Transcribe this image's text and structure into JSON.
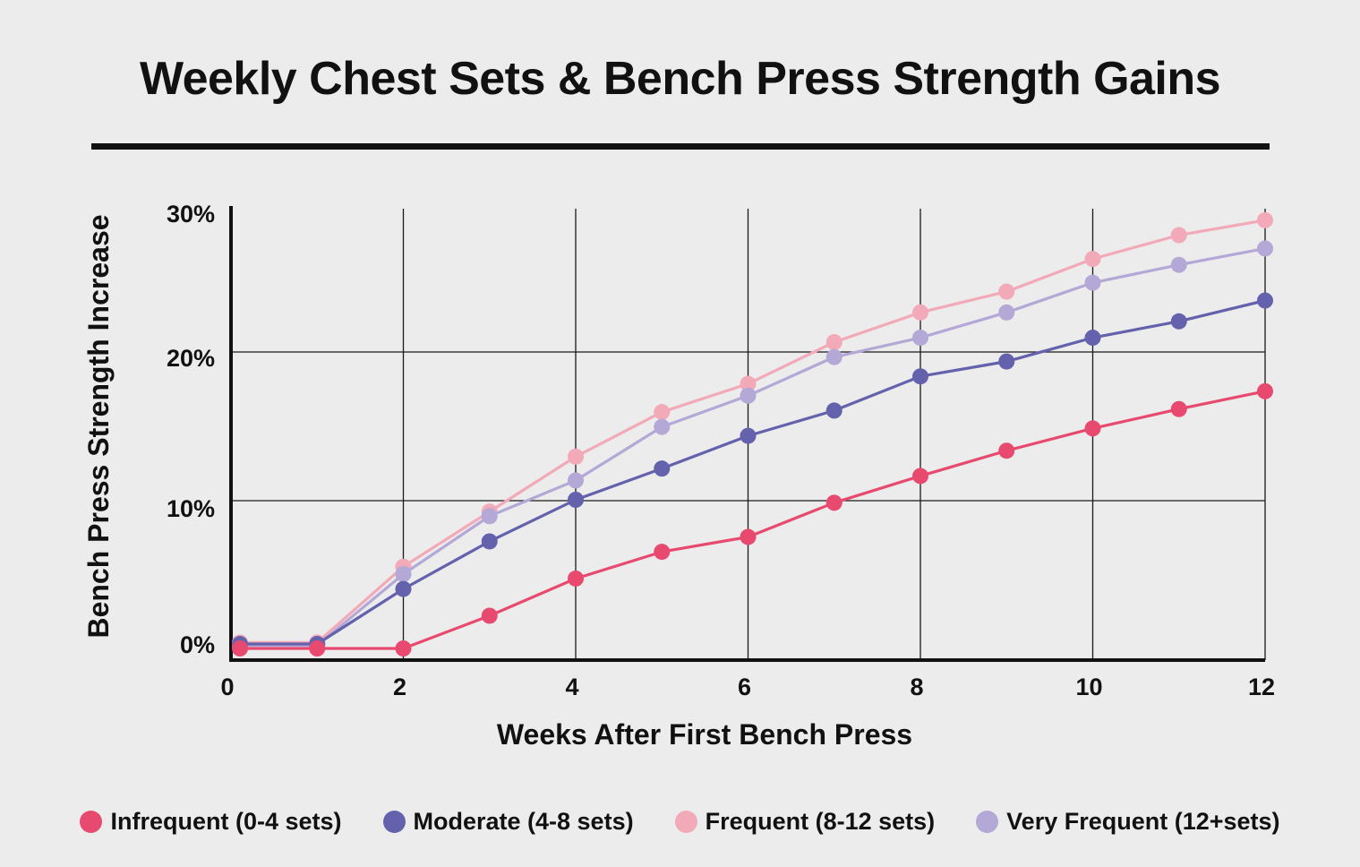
{
  "title": "Weekly Chest Sets & Bench Press Strength Gains",
  "chart_data": {
    "type": "line",
    "title": "Weekly Chest Sets & Bench Press Strength Gains",
    "xlabel": "Weeks After First Bench Press",
    "ylabel": "Bench Press Strength Increase",
    "x": [
      0,
      1,
      2,
      3,
      4,
      5,
      6,
      7,
      8,
      9,
      10,
      11,
      12
    ],
    "xlim": [
      0,
      12
    ],
    "ylim": [
      -1,
      30
    ],
    "x_ticks": [
      0,
      2,
      4,
      6,
      8,
      10,
      12
    ],
    "x_tick_labels": [
      "0",
      "2",
      "4",
      "6",
      "8",
      "10",
      "12"
    ],
    "y_ticks": [
      0,
      10,
      20,
      30
    ],
    "y_tick_labels": [
      "0%",
      "10%",
      "20%",
      "30%"
    ],
    "grid": true,
    "legend_position": "bottom",
    "series": [
      {
        "name": "Infrequent (0-4 sets)",
        "color": "#e84a6f",
        "values": [
          0,
          0,
          0,
          2.2,
          4.7,
          6.5,
          7.5,
          9.8,
          11.6,
          13.3,
          14.8,
          16.1,
          17.3
        ]
      },
      {
        "name": "Moderate (4-8 sets)",
        "color": "#6461ad",
        "values": [
          0.3,
          0.3,
          4.0,
          7.2,
          10.0,
          12.1,
          14.3,
          16.0,
          18.3,
          19.3,
          20.9,
          22.0,
          23.4
        ]
      },
      {
        "name": "Frequent (8-12 sets)",
        "color": "#f2a9b8",
        "values": [
          0.4,
          0.4,
          5.5,
          9.2,
          12.9,
          15.9,
          17.8,
          20.6,
          22.6,
          24.0,
          26.2,
          27.8,
          28.8
        ]
      },
      {
        "name": "Very Frequent (12+sets)",
        "color": "#b3a8d6",
        "values": [
          0.2,
          0.2,
          5.0,
          8.9,
          11.3,
          14.9,
          17.0,
          19.6,
          20.9,
          22.6,
          24.6,
          25.8,
          26.9
        ]
      }
    ]
  }
}
